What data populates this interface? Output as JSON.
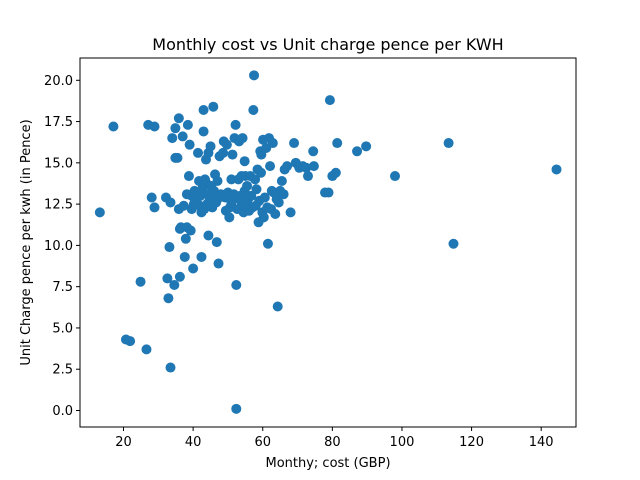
{
  "chart_data": {
    "type": "scatter",
    "title": "Monthly cost vs Unit charge pence per KWH",
    "xlabel": "Monthy; cost (GBP)",
    "ylabel": "Unit Charge pence per kwh (in Pence)",
    "xlim": [
      7.5,
      150
    ],
    "ylim": [
      -1.0,
      21.35
    ],
    "xticks": [
      20,
      40,
      60,
      80,
      100,
      120,
      140
    ],
    "yticks": [
      0.0,
      2.5,
      5.0,
      7.5,
      10.0,
      12.5,
      15.0,
      17.5,
      20.0
    ],
    "xtick_labels": [
      "20",
      "40",
      "60",
      "80",
      "100",
      "120",
      "140"
    ],
    "ytick_labels": [
      "0.0",
      "2.5",
      "5.0",
      "7.5",
      "10.0",
      "12.5",
      "15.0",
      "17.5",
      "20.0"
    ],
    "grid": false,
    "color": "#1f77b4",
    "series": [
      {
        "points": [
          [
            13.2,
            12.0
          ],
          [
            17.1,
            17.2
          ],
          [
            20.7,
            4.3
          ],
          [
            21.9,
            4.2
          ],
          [
            24.9,
            7.8
          ],
          [
            26.6,
            3.7
          ],
          [
            27.1,
            17.3
          ],
          [
            28.1,
            12.9
          ],
          [
            28.9,
            12.3
          ],
          [
            28.9,
            17.2
          ],
          [
            32.2,
            12.9
          ],
          [
            32.6,
            8.0
          ],
          [
            32.9,
            6.8
          ],
          [
            33.2,
            9.9
          ],
          [
            33.5,
            12.6
          ],
          [
            33.5,
            2.6
          ],
          [
            34.0,
            16.5
          ],
          [
            34.6,
            7.6
          ],
          [
            34.9,
            15.3
          ],
          [
            34.9,
            17.1
          ],
          [
            35.5,
            15.3
          ],
          [
            35.9,
            12.2
          ],
          [
            35.9,
            17.7
          ],
          [
            36.2,
            11.0
          ],
          [
            36.2,
            8.1
          ],
          [
            36.5,
            11.1
          ],
          [
            37.0,
            16.6
          ],
          [
            37.3,
            12.4
          ],
          [
            37.6,
            9.3
          ],
          [
            37.9,
            10.4
          ],
          [
            38.2,
            11.1
          ],
          [
            38.2,
            13.1
          ],
          [
            38.5,
            17.3
          ],
          [
            38.8,
            14.2
          ],
          [
            39.0,
            16.1
          ],
          [
            39.3,
            10.9
          ],
          [
            39.6,
            12.2
          ],
          [
            39.6,
            13.0
          ],
          [
            40.0,
            8.6
          ],
          [
            40.2,
            12.5
          ],
          [
            40.4,
            13.3
          ],
          [
            40.7,
            12.9
          ],
          [
            41.0,
            12.6
          ],
          [
            41.4,
            15.6
          ],
          [
            41.7,
            13.9
          ],
          [
            41.9,
            12.4
          ],
          [
            42.1,
            13.0
          ],
          [
            42.4,
            12.0
          ],
          [
            42.4,
            9.3
          ],
          [
            42.7,
            13.5
          ],
          [
            43.0,
            16.9
          ],
          [
            43.0,
            18.2
          ],
          [
            43.2,
            12.2
          ],
          [
            43.4,
            14.0
          ],
          [
            43.7,
            15.2
          ],
          [
            43.7,
            13.8
          ],
          [
            44.0,
            12.5
          ],
          [
            44.2,
            13.1
          ],
          [
            44.4,
            15.6
          ],
          [
            44.4,
            10.6
          ],
          [
            44.7,
            12.7
          ],
          [
            45.0,
            16.0
          ],
          [
            45.2,
            13.6
          ],
          [
            45.5,
            12.3
          ],
          [
            45.8,
            18.4
          ],
          [
            46.0,
            13.3
          ],
          [
            46.3,
            14.3
          ],
          [
            46.3,
            13.0
          ],
          [
            46.6,
            12.6
          ],
          [
            46.8,
            10.2
          ],
          [
            47.0,
            13.9
          ],
          [
            47.0,
            12.8
          ],
          [
            47.3,
            8.9
          ],
          [
            47.6,
            15.4
          ],
          [
            48.0,
            13.1
          ],
          [
            48.6,
            15.6
          ],
          [
            48.8,
            16.3
          ],
          [
            49.2,
            12.9
          ],
          [
            49.4,
            12.1
          ],
          [
            49.7,
            16.1
          ],
          [
            50.0,
            13.2
          ],
          [
            50.4,
            11.7
          ],
          [
            50.6,
            12.3
          ],
          [
            51.0,
            12.6
          ],
          [
            51.0,
            14.0
          ],
          [
            51.3,
            15.5
          ],
          [
            51.7,
            13.1
          ],
          [
            51.9,
            16.5
          ],
          [
            52.2,
            17.3
          ],
          [
            52.4,
            12.9
          ],
          [
            52.4,
            7.6
          ],
          [
            52.4,
            0.1
          ],
          [
            52.7,
            12.2
          ],
          [
            53.0,
            14.0
          ],
          [
            53.2,
            16.3
          ],
          [
            53.5,
            13.0
          ],
          [
            53.7,
            12.7
          ],
          [
            53.9,
            14.2
          ],
          [
            54.2,
            16.5
          ],
          [
            54.5,
            12.0
          ],
          [
            54.8,
            13.3
          ],
          [
            54.8,
            15.1
          ],
          [
            55.0,
            14.2
          ],
          [
            55.2,
            12.4
          ],
          [
            55.5,
            13.6
          ],
          [
            55.8,
            12.8
          ],
          [
            56.1,
            12.1
          ],
          [
            56.4,
            14.2
          ],
          [
            56.7,
            13.0
          ],
          [
            57.0,
            12.3
          ],
          [
            57.3,
            18.2
          ],
          [
            57.5,
            20.3
          ],
          [
            57.8,
            14.0
          ],
          [
            58.0,
            12.4
          ],
          [
            58.2,
            13.4
          ],
          [
            58.5,
            14.6
          ],
          [
            58.8,
            11.4
          ],
          [
            59.0,
            12.7
          ],
          [
            59.3,
            15.7
          ],
          [
            59.5,
            14.4
          ],
          [
            59.6,
            15.5
          ],
          [
            59.9,
            12.0
          ],
          [
            60.1,
            16.4
          ],
          [
            60.3,
            11.7
          ],
          [
            60.6,
            12.9
          ],
          [
            61.0,
            15.9
          ],
          [
            61.3,
            12.3
          ],
          [
            61.5,
            10.1
          ],
          [
            61.8,
            16.5
          ],
          [
            62.1,
            14.8
          ],
          [
            62.4,
            12.2
          ],
          [
            62.6,
            13.3
          ],
          [
            62.9,
            16.2
          ],
          [
            63.2,
            13.2
          ],
          [
            63.6,
            11.9
          ],
          [
            64.0,
            12.8
          ],
          [
            64.3,
            6.3
          ],
          [
            64.6,
            12.6
          ],
          [
            65.0,
            13.3
          ],
          [
            65.5,
            13.9
          ],
          [
            66.0,
            13.1
          ],
          [
            66.3,
            14.6
          ],
          [
            67.0,
            14.8
          ],
          [
            68.0,
            12.0
          ],
          [
            69.0,
            16.2
          ],
          [
            69.5,
            15.0
          ],
          [
            70.5,
            14.7
          ],
          [
            71.5,
            14.8
          ],
          [
            72.5,
            14.7
          ],
          [
            73.0,
            14.2
          ],
          [
            74.5,
            15.7
          ],
          [
            74.7,
            14.8
          ],
          [
            77.9,
            13.2
          ],
          [
            78.9,
            13.2
          ],
          [
            79.3,
            18.8
          ],
          [
            80.0,
            14.2
          ],
          [
            81.0,
            14.4
          ],
          [
            81.4,
            16.2
          ],
          [
            87.1,
            15.7
          ],
          [
            89.7,
            16.0
          ],
          [
            98.0,
            14.2
          ],
          [
            113.4,
            16.2
          ],
          [
            114.8,
            10.1
          ],
          [
            144.4,
            14.6
          ]
        ]
      }
    ]
  }
}
